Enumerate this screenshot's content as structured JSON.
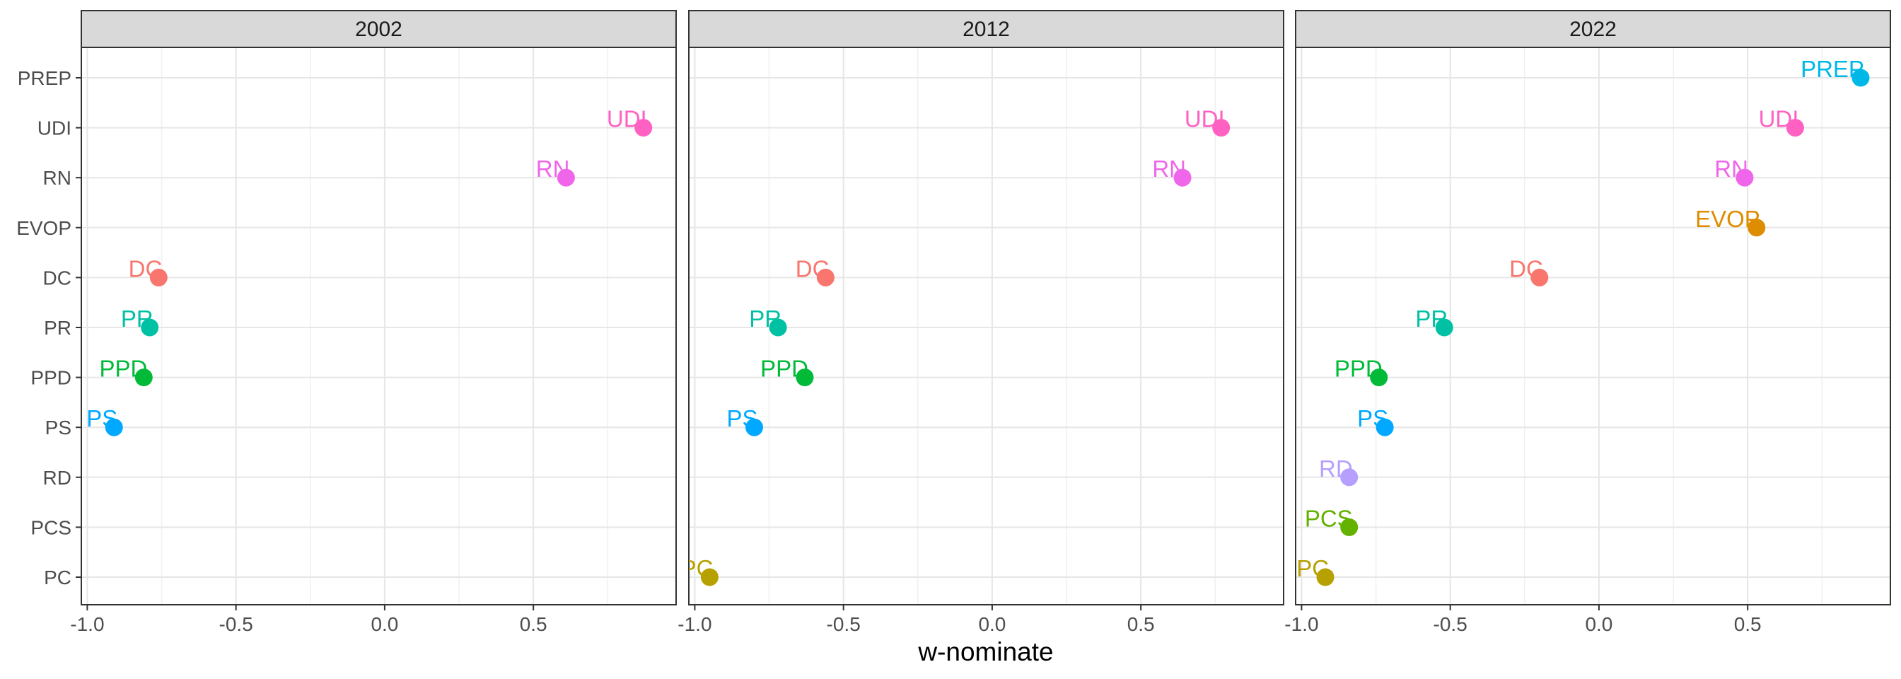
{
  "chart_data": {
    "type": "scatter",
    "facet_by": "year",
    "xlabel": "w-nominate",
    "ylabel": "",
    "xlim": [
      -1.02,
      0.98
    ],
    "x_ticks": [
      -1.0,
      -0.5,
      0.0,
      0.5
    ],
    "x_tick_labels": [
      "-1.0",
      "-0.5",
      "0.0",
      "0.5"
    ],
    "y_categories": [
      "PREP",
      "UDI",
      "RN",
      "EVOP",
      "DC",
      "PR",
      "PPD",
      "PS",
      "RD",
      "PCS",
      "PC"
    ],
    "grid": true,
    "legend": "none",
    "colors": {
      "PREP": "#00B8E7",
      "UDI": "#FF61C3",
      "RN": "#F066EA",
      "EVOP": "#DE8C00",
      "DC": "#F8766D",
      "PR": "#00C1A3",
      "PPD": "#00BA38",
      "PS": "#00A9FF",
      "RD": "#B79FFF",
      "PCS": "#64B200",
      "PC": "#B7A100"
    },
    "facets": [
      {
        "title": "2002",
        "points": [
          {
            "party": "UDI",
            "x": 0.87
          },
          {
            "party": "RN",
            "x": 0.61
          },
          {
            "party": "DC",
            "x": -0.76
          },
          {
            "party": "PR",
            "x": -0.79
          },
          {
            "party": "PPD",
            "x": -0.81
          },
          {
            "party": "PS",
            "x": -0.91
          }
        ]
      },
      {
        "title": "2012",
        "points": [
          {
            "party": "UDI",
            "x": 0.77
          },
          {
            "party": "RN",
            "x": 0.64
          },
          {
            "party": "DC",
            "x": -0.56
          },
          {
            "party": "PR",
            "x": -0.72
          },
          {
            "party": "PPD",
            "x": -0.63
          },
          {
            "party": "PS",
            "x": -0.8
          },
          {
            "party": "PC",
            "x": -0.95
          }
        ]
      },
      {
        "title": "2022",
        "points": [
          {
            "party": "PREP",
            "x": 0.88
          },
          {
            "party": "UDI",
            "x": 0.66
          },
          {
            "party": "RN",
            "x": 0.49
          },
          {
            "party": "EVOP",
            "x": 0.53
          },
          {
            "party": "DC",
            "x": -0.2
          },
          {
            "party": "PR",
            "x": -0.52
          },
          {
            "party": "PPD",
            "x": -0.74
          },
          {
            "party": "PS",
            "x": -0.72
          },
          {
            "party": "RD",
            "x": -0.84
          },
          {
            "party": "PCS",
            "x": -0.84
          },
          {
            "party": "PC",
            "x": -0.92
          }
        ]
      }
    ]
  }
}
